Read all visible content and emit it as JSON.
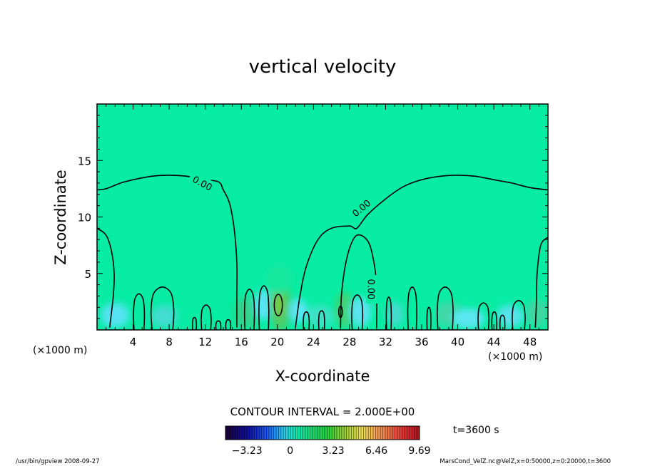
{
  "chart_data": {
    "type": "contour",
    "title": "vertical velocity",
    "xlabel": "X-coordinate",
    "ylabel": "Z-coordinate",
    "x_unit": "(×1000 m)",
    "y_unit": "(×1000 m)",
    "xlim": [
      0,
      50
    ],
    "ylim": [
      0,
      20
    ],
    "x_ticks": [
      "4",
      "8",
      "12",
      "16",
      "20",
      "24",
      "28",
      "32",
      "36",
      "40",
      "44",
      "48"
    ],
    "y_ticks": [
      "5",
      "10",
      "15"
    ],
    "contour_interval_text": "CONTOUR INTERVAL = 2.000E+00",
    "contour_label": "0.00",
    "time_label": "t=3600 s",
    "colorbar": {
      "min": -4.845,
      "max": 9.69,
      "tick_labels": [
        "−3.23",
        "0",
        "3.23",
        "6.46",
        "9.69"
      ],
      "tick_values": [
        -3.23,
        0,
        3.23,
        6.46,
        9.69
      ]
    },
    "zero_contours": [
      {
        "name": "left-dome",
        "points": [
          [
            0,
            12.4
          ],
          [
            1,
            12.5
          ],
          [
            3,
            13.1
          ],
          [
            6,
            13.6
          ],
          [
            8,
            13.7
          ],
          [
            10,
            13.6
          ],
          [
            12,
            13.3
          ],
          [
            13.5,
            13.1
          ],
          [
            14,
            12.4
          ],
          [
            14.7,
            11.2
          ],
          [
            15.2,
            9
          ],
          [
            15.5,
            6
          ],
          [
            15.5,
            3
          ],
          [
            15.5,
            0.2
          ]
        ]
      },
      {
        "name": "right-dome",
        "points": [
          [
            22,
            0.2
          ],
          [
            22.5,
            3
          ],
          [
            23.2,
            5.6
          ],
          [
            24.5,
            8
          ],
          [
            26,
            9
          ],
          [
            28,
            9.2
          ],
          [
            28.8,
            9.0
          ],
          [
            30,
            10.2
          ],
          [
            32,
            11.6
          ],
          [
            34,
            12.7
          ],
          [
            36,
            13.3
          ],
          [
            38,
            13.6
          ],
          [
            40,
            13.7
          ],
          [
            42,
            13.6
          ],
          [
            44,
            13.3
          ],
          [
            46,
            13.0
          ],
          [
            48,
            12.6
          ],
          [
            50,
            12.4
          ]
        ]
      },
      {
        "name": "inner-arch",
        "points": [
          [
            27,
            0.2
          ],
          [
            27.1,
            3
          ],
          [
            27.6,
            6
          ],
          [
            28.4,
            8
          ],
          [
            29.2,
            8.4
          ],
          [
            30.2,
            7.6
          ],
          [
            30.8,
            5.5
          ],
          [
            31.0,
            3.5
          ],
          [
            31.0,
            0.2
          ]
        ]
      },
      {
        "name": "right-edge-arch",
        "points": [
          [
            48.6,
            0.2
          ],
          [
            48.7,
            2
          ],
          [
            48.8,
            5
          ],
          [
            49.2,
            7.5
          ],
          [
            50,
            8.2
          ]
        ]
      },
      {
        "name": "left-edge-arch",
        "points": [
          [
            0,
            9.0
          ],
          [
            1,
            8.4
          ],
          [
            1.6,
            7
          ],
          [
            1.9,
            5
          ],
          [
            1.8,
            3
          ],
          [
            1.4,
            0.2
          ]
        ]
      }
    ],
    "small_cells": [
      {
        "x0": 4.1,
        "x1": 5.2,
        "h": 3.2
      },
      {
        "x0": 6.1,
        "x1": 8.4,
        "h": 3.8
      },
      {
        "x0": 10.6,
        "x1": 11.0,
        "h": 1.1
      },
      {
        "x0": 11.6,
        "x1": 12.6,
        "h": 2.2
      },
      {
        "x0": 13.2,
        "x1": 13.7,
        "h": 0.8
      },
      {
        "x0": 14.3,
        "x1": 14.8,
        "h": 0.9
      },
      {
        "x0": 16.4,
        "x1": 17.4,
        "h": 3.6
      },
      {
        "x0": 18.0,
        "x1": 19.0,
        "h": 3.9
      },
      {
        "x0": 22.9,
        "x1": 23.5,
        "h": 1.6
      },
      {
        "x0": 24.6,
        "x1": 25.2,
        "h": 1.7
      },
      {
        "x0": 28.3,
        "x1": 29.4,
        "h": 3.1
      },
      {
        "x0": 32.1,
        "x1": 32.6,
        "h": 2.9
      },
      {
        "x0": 34.5,
        "x1": 35.4,
        "h": 3.8
      },
      {
        "x0": 36.6,
        "x1": 37.0,
        "h": 2.0
      },
      {
        "x0": 37.8,
        "x1": 39.4,
        "h": 3.8
      },
      {
        "x0": 42.3,
        "x1": 43.4,
        "h": 2.4
      },
      {
        "x0": 43.8,
        "x1": 44.3,
        "h": 1.6
      },
      {
        "x0": 44.7,
        "x1": 45.2,
        "h": 1.3
      },
      {
        "x0": 46.1,
        "x1": 47.4,
        "h": 2.6
      }
    ],
    "closed_cells": [
      {
        "cx": 20.1,
        "cy": 2.2,
        "rx": 0.45,
        "ry": 0.95
      },
      {
        "cx": 27.0,
        "cy": 1.6,
        "rx": 0.2,
        "ry": 0.5
      }
    ],
    "color_patches": [
      {
        "cx": 2.0,
        "cy": 1.3,
        "rx": 1.6,
        "ry": 1.1,
        "color": "#55e3f2"
      },
      {
        "cx": 7.5,
        "cy": 1.2,
        "rx": 1.5,
        "ry": 1.0,
        "color": "#42dcd0"
      },
      {
        "cx": 16.5,
        "cy": 1.5,
        "rx": 1.4,
        "ry": 1.4,
        "color": "#30d48b"
      },
      {
        "cx": 18.5,
        "cy": 2.2,
        "rx": 1.1,
        "ry": 1.3,
        "color": "#56e6f6"
      },
      {
        "cx": 20.3,
        "cy": 2.4,
        "rx": 1.2,
        "ry": 2.6,
        "color": "#4ccd68"
      },
      {
        "cx": 20.2,
        "cy": 2.2,
        "rx": 0.5,
        "ry": 1.0,
        "color": "#7fc63e"
      },
      {
        "cx": 22.3,
        "cy": 1.7,
        "rx": 1.0,
        "ry": 1.1,
        "color": "#58e6f3"
      },
      {
        "cx": 24.7,
        "cy": 1.2,
        "rx": 1.6,
        "ry": 1.0,
        "color": "#3ae3c4"
      },
      {
        "cx": 27.4,
        "cy": 1.8,
        "rx": 1.0,
        "ry": 1.6,
        "color": "#3fd474"
      },
      {
        "cx": 29.2,
        "cy": 1.6,
        "rx": 1.2,
        "ry": 1.3,
        "color": "#5ae4f0"
      },
      {
        "cx": 33.0,
        "cy": 1.4,
        "rx": 1.0,
        "ry": 1.1,
        "color": "#45dccd"
      },
      {
        "cx": 39.0,
        "cy": 1.4,
        "rx": 1.5,
        "ry": 1.1,
        "color": "#42d8a8"
      },
      {
        "cx": 41.2,
        "cy": 1.0,
        "rx": 1.8,
        "ry": 0.9,
        "color": "#5ce6f2"
      },
      {
        "cx": 45.8,
        "cy": 1.2,
        "rx": 1.5,
        "ry": 1.0,
        "color": "#57e3ec"
      },
      {
        "cx": 48.8,
        "cy": 1.5,
        "rx": 1.2,
        "ry": 1.2,
        "color": "#3fd6a2"
      },
      {
        "cx": 20.2,
        "cy": 4.5,
        "rx": 1.6,
        "ry": 1.3,
        "color": "#16e89f"
      }
    ],
    "contour_label_positions": [
      [
        11.7,
        13.0,
        28
      ],
      [
        29.3,
        10.8,
        -40
      ],
      [
        30.4,
        3.6,
        90
      ]
    ]
  },
  "footer": {
    "left": "/usr/bin/gpview  2008-09-27",
    "right": "MarsCond_VelZ.nc@VelZ,x=0:50000,z=0:20000,t=3600"
  },
  "colors": {
    "background_field": "#06eca3",
    "contour": "#000000"
  }
}
